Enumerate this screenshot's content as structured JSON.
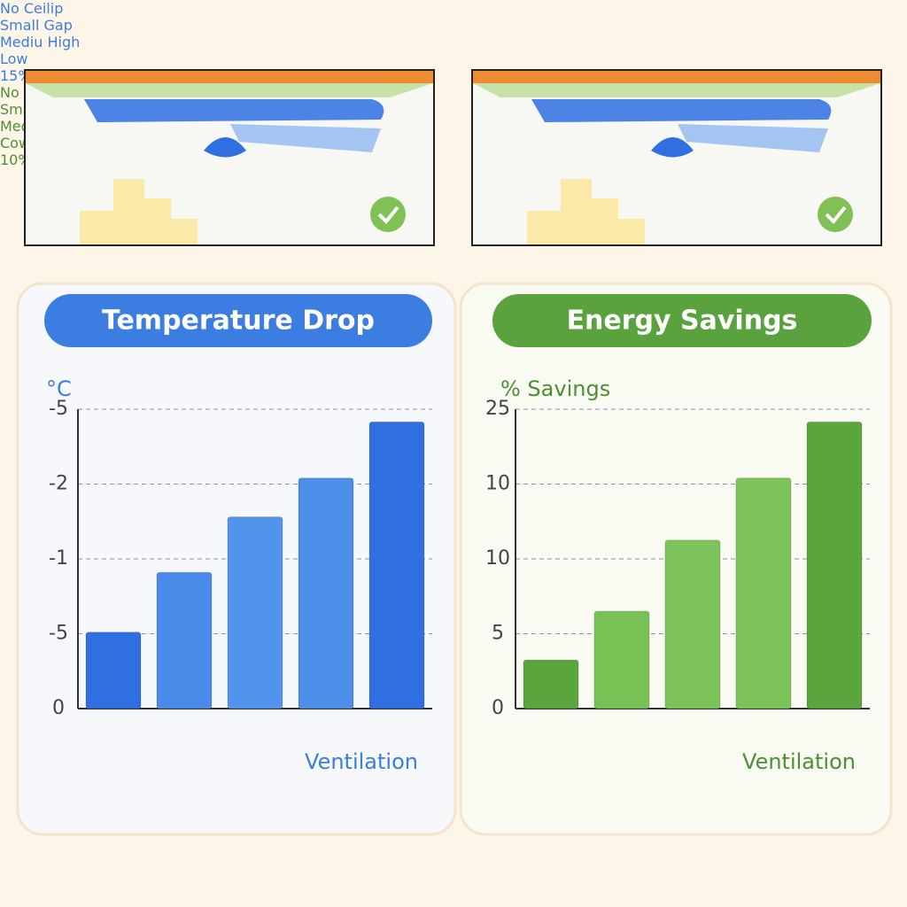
{
  "chart_data": [
    {
      "type": "bar",
      "title": "Temperature Drop",
      "y_label": "°C",
      "categories": [
        "No\nCeilip",
        "Small\nGap",
        "Mediu\nHigh",
        "Low",
        "15%"
      ],
      "annotation": "Ventilation",
      "values": [
        1.02,
        1.82,
        2.56,
        3.08,
        3.83
      ],
      "colors": [
        "#2f6fe0",
        "#4a8ae8",
        "#5293ec",
        "#4d8ee9",
        "#2f6fe0"
      ],
      "title_color": "#3b7de0",
      "text_color": "#3b7de0",
      "ylim": [
        0,
        4
      ],
      "yticks": [
        0,
        {
          "value": 1,
          "label": "-5"
        },
        {
          "value": 2,
          "label": "-1"
        },
        {
          "value": 3,
          "label": "-2"
        },
        {
          "value": 4,
          "label": "-5"
        }
      ],
      "grid": true
    },
    {
      "type": "bar",
      "title": "Energy Savings",
      "y_label": "% Savings",
      "categories": [
        "No\nCeilip",
        "Small\nGap",
        "Mediu\nLow",
        "Cow",
        "10%"
      ],
      "annotation": "Ventilation",
      "values": [
        0.65,
        1.3,
        2.25,
        3.08,
        3.83
      ],
      "colors": [
        "#5aa53c",
        "#77c155",
        "#7cc45a",
        "#7cc45a",
        "#5aa53c"
      ],
      "title_color": "#5aa23e",
      "text_color": "#4e8f35",
      "ylim": [
        0,
        4
      ],
      "yticks": [
        0,
        {
          "value": 1,
          "label": "5"
        },
        {
          "value": 2,
          "label": "10"
        },
        {
          "value": 3,
          "label": "10"
        },
        {
          "value": 4,
          "label": "25"
        }
      ],
      "grid": true
    }
  ]
}
